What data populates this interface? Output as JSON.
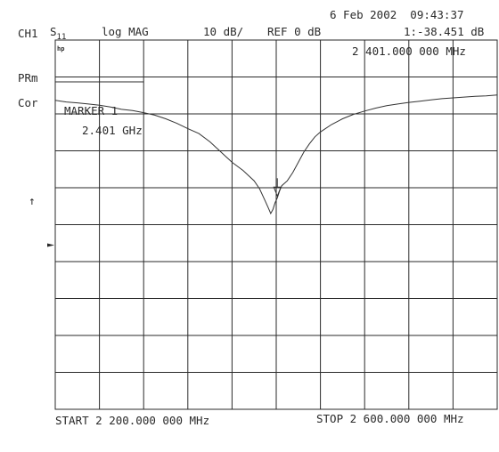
{
  "header": {
    "date_time": "6 Feb 2002  09:43:37",
    "channel": "CH1",
    "param": "S",
    "param_sub": "11",
    "format": "log MAG",
    "scale": "10 dB/",
    "reference": "REF 0 dB",
    "marker_readout": "1:-38.451 dB",
    "marker_freq_readout": "2 401.000 000 MHz"
  },
  "left_annotations": {
    "prm": "PRm",
    "cor": "Cor",
    "ref_arrow": "↑"
  },
  "logo": "hp",
  "marker_box": {
    "title": "MARKER 1",
    "freq": "2.401 GHz"
  },
  "footer": {
    "start": "START 2 200.000 000 MHz",
    "stop": "STOP 2 600.000 000 MHz"
  },
  "colors": {
    "trace": "#333333",
    "grid": "#2a2a2a",
    "background": "#ffffff"
  },
  "chart_data": {
    "type": "line",
    "title": "",
    "xlabel": "",
    "ylabel": "",
    "x_unit": "MHz",
    "y_unit": "dB",
    "xlim": [
      2200,
      2600
    ],
    "ylim": [
      -90,
      0
    ],
    "grid": true,
    "markers": [
      {
        "id": "1",
        "x": 2401,
        "y": -38.451
      }
    ],
    "series": [
      {
        "x": [
          2200,
          2210,
          2220,
          2230,
          2240,
          2250,
          2260,
          2270,
          2280,
          2290,
          2300,
          2310,
          2320,
          2330,
          2340,
          2350,
          2360,
          2370,
          2380,
          2385,
          2390,
          2393,
          2395,
          2397,
          2399,
          2401,
          2403,
          2405,
          2410,
          2415,
          2420,
          2425,
          2430,
          2435,
          2440,
          2450,
          2460,
          2470,
          2480,
          2490,
          2500,
          2510,
          2520,
          2530,
          2540,
          2550,
          2560,
          2570,
          2580,
          2590,
          2600
        ],
        "y": [
          -14.7,
          -15.1,
          -15.3,
          -15.6,
          -15.9,
          -16.3,
          -16.9,
          -17.2,
          -17.7,
          -18.3,
          -19.2,
          -20.3,
          -21.6,
          -22.8,
          -24.8,
          -27.3,
          -29.8,
          -31.8,
          -34.3,
          -36.3,
          -39.2,
          -41.0,
          -42.3,
          -41.3,
          -39.6,
          -38.5,
          -36.8,
          -35.5,
          -34.3,
          -32.3,
          -29.8,
          -27.3,
          -25.3,
          -23.6,
          -22.4,
          -20.6,
          -19.2,
          -18.1,
          -17.3,
          -16.6,
          -16.0,
          -15.6,
          -15.2,
          -14.9,
          -14.6,
          -14.3,
          -14.1,
          -13.9,
          -13.7,
          -13.6,
          -13.4
        ]
      }
    ]
  }
}
